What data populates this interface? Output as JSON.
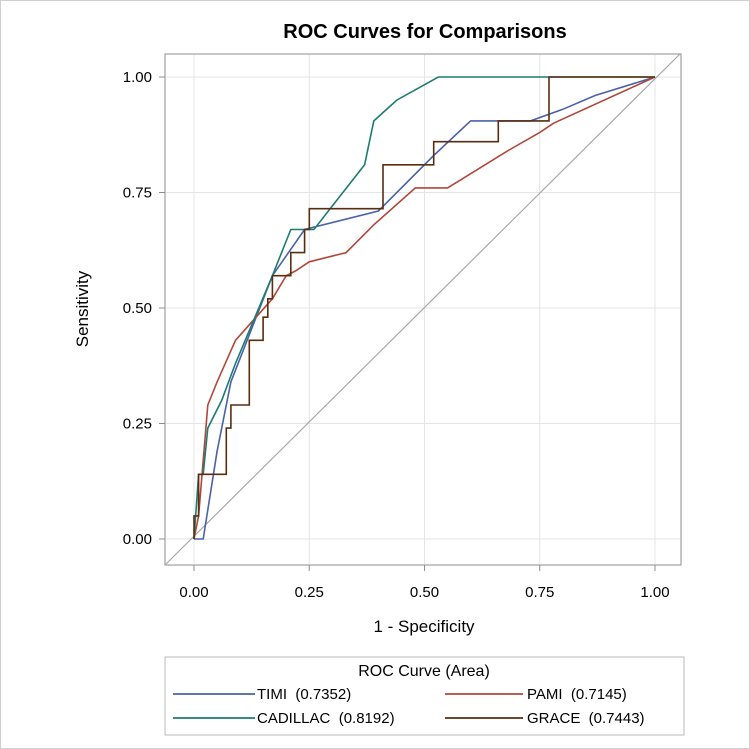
{
  "chart_data": {
    "type": "line",
    "title": "ROC Curves for Comparisons",
    "xlabel": "1 - Specificity",
    "ylabel": "Sensitivity",
    "xlim": [
      0,
      1
    ],
    "ylim": [
      0,
      1
    ],
    "x_ticks": [
      "0.00",
      "0.25",
      "0.50",
      "0.75",
      "1.00"
    ],
    "y_ticks": [
      "0.00",
      "0.25",
      "0.50",
      "0.75",
      "1.00"
    ],
    "grid": true,
    "diagonal_reference": true,
    "legend": {
      "title": "ROC Curve (Area)",
      "placement": "bottom"
    },
    "series": [
      {
        "name": "TIMI",
        "label": "TIMI  (0.7352)",
        "area": 0.7352,
        "color": "#4a62a8",
        "points": [
          [
            0,
            0
          ],
          [
            0.02,
            0
          ],
          [
            0.05,
            0.19
          ],
          [
            0.08,
            0.34
          ],
          [
            0.17,
            0.57
          ],
          [
            0.24,
            0.67
          ],
          [
            0.4,
            0.71
          ],
          [
            0.52,
            0.83
          ],
          [
            0.6,
            0.905
          ],
          [
            0.73,
            0.905
          ],
          [
            0.8,
            0.93
          ],
          [
            0.87,
            0.96
          ],
          [
            1,
            1
          ]
        ]
      },
      {
        "name": "PAMI",
        "label": "PAMI  (0.7145)",
        "area": 0.7145,
        "color": "#b0483a",
        "points": [
          [
            0,
            0
          ],
          [
            0.01,
            0.05
          ],
          [
            0.03,
            0.29
          ],
          [
            0.05,
            0.34
          ],
          [
            0.09,
            0.43
          ],
          [
            0.17,
            0.52
          ],
          [
            0.2,
            0.57
          ],
          [
            0.22,
            0.58
          ],
          [
            0.25,
            0.6
          ],
          [
            0.33,
            0.62
          ],
          [
            0.39,
            0.68
          ],
          [
            0.48,
            0.76
          ],
          [
            0.55,
            0.76
          ],
          [
            0.68,
            0.84
          ],
          [
            0.75,
            0.88
          ],
          [
            0.78,
            0.9
          ],
          [
            1,
            1
          ]
        ]
      },
      {
        "name": "CADILLAC",
        "label": "CADILLAC  (0.8192)",
        "area": 0.8192,
        "color": "#1d7c72",
        "points": [
          [
            0,
            0
          ],
          [
            0.01,
            0.14
          ],
          [
            0.02,
            0.14
          ],
          [
            0.03,
            0.24
          ],
          [
            0.06,
            0.3
          ],
          [
            0.09,
            0.38
          ],
          [
            0.17,
            0.57
          ],
          [
            0.21,
            0.67
          ],
          [
            0.26,
            0.67
          ],
          [
            0.37,
            0.81
          ],
          [
            0.39,
            0.905
          ],
          [
            0.44,
            0.95
          ],
          [
            0.53,
            1
          ],
          [
            1,
            1
          ]
        ]
      },
      {
        "name": "GRACE",
        "label": "GRACE  (0.7443)",
        "area": 0.7443,
        "color": "#5a2c10",
        "points": [
          [
            0,
            0
          ],
          [
            0,
            0.05
          ],
          [
            0.01,
            0.05
          ],
          [
            0.01,
            0.14
          ],
          [
            0.07,
            0.14
          ],
          [
            0.07,
            0.24
          ],
          [
            0.08,
            0.24
          ],
          [
            0.08,
            0.29
          ],
          [
            0.12,
            0.29
          ],
          [
            0.12,
            0.43
          ],
          [
            0.15,
            0.43
          ],
          [
            0.15,
            0.48
          ],
          [
            0.16,
            0.48
          ],
          [
            0.16,
            0.52
          ],
          [
            0.17,
            0.52
          ],
          [
            0.17,
            0.57
          ],
          [
            0.21,
            0.57
          ],
          [
            0.21,
            0.62
          ],
          [
            0.24,
            0.62
          ],
          [
            0.24,
            0.67
          ],
          [
            0.25,
            0.67
          ],
          [
            0.25,
            0.715
          ],
          [
            0.41,
            0.715
          ],
          [
            0.41,
            0.81
          ],
          [
            0.52,
            0.81
          ],
          [
            0.52,
            0.86
          ],
          [
            0.66,
            0.86
          ],
          [
            0.66,
            0.905
          ],
          [
            0.77,
            0.905
          ],
          [
            0.77,
            1
          ],
          [
            1,
            1
          ]
        ]
      }
    ]
  }
}
